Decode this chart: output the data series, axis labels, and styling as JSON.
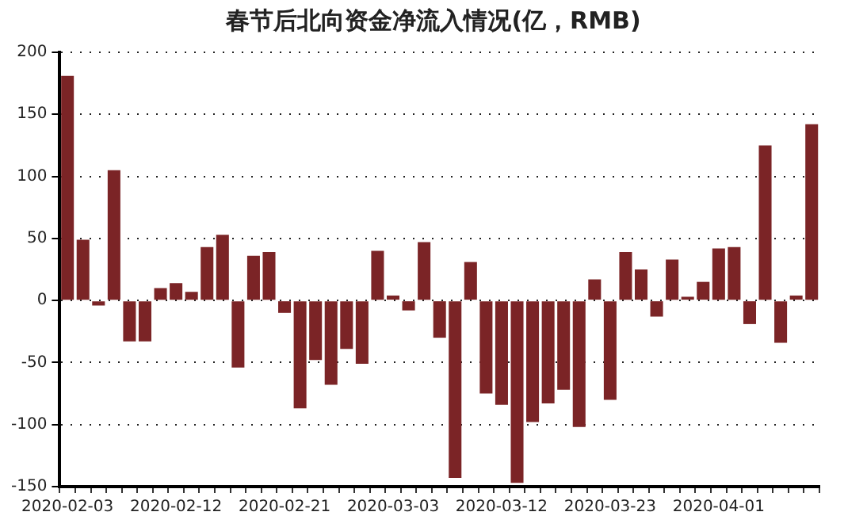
{
  "chart_data": {
    "type": "bar",
    "title": "春节后北向资金净流入情况(亿，RMB)",
    "categories": [
      "2020-02-03",
      null,
      null,
      null,
      null,
      null,
      null,
      "2020-02-12",
      null,
      null,
      null,
      null,
      null,
      null,
      "2020-02-21",
      null,
      null,
      null,
      null,
      null,
      null,
      "2020-03-03",
      null,
      null,
      null,
      null,
      null,
      null,
      "2020-03-12",
      null,
      null,
      null,
      null,
      null,
      null,
      "2020-03-23",
      null,
      null,
      null,
      null,
      null,
      null,
      "2020-04-01",
      null,
      null,
      null,
      null,
      null,
      null
    ],
    "values": [
      181,
      49,
      -4,
      105,
      -33,
      -33,
      10,
      14,
      7,
      43,
      53,
      -54,
      36,
      39,
      -10,
      -87,
      -48,
      -68,
      -39,
      -51,
      40,
      4,
      -8,
      47,
      -30,
      -143,
      31,
      -75,
      -84,
      -147,
      -98,
      -83,
      -72,
      -102,
      17,
      -80,
      39,
      25,
      -13,
      33,
      3,
      15,
      42,
      43,
      -19,
      125,
      -34,
      4,
      142
    ],
    "color": "#7b2426",
    "ylim": [
      -150,
      200
    ],
    "yticks": [
      -150,
      -100,
      -50,
      0,
      50,
      100,
      150,
      200
    ],
    "grid": "y",
    "legend": false
  }
}
